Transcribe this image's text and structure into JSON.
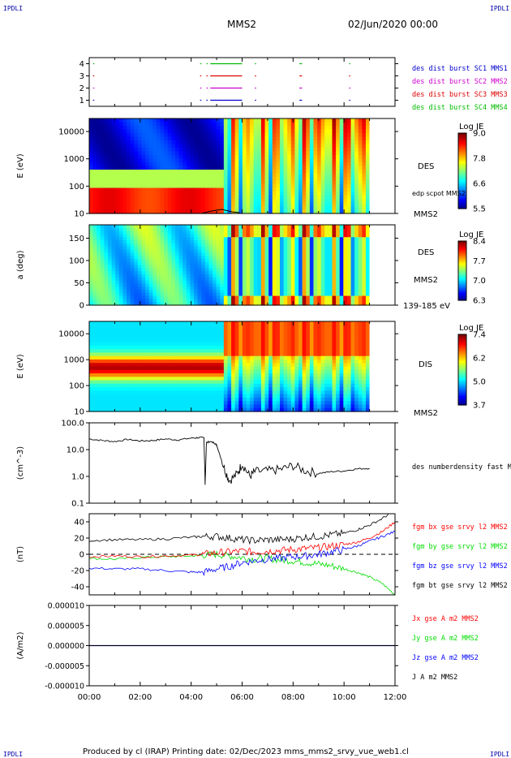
{
  "header": {
    "corner_left": "IPDLI",
    "corner_right": "IPDLI",
    "title": "MMS2",
    "date": "02/Jun/2020 00:00",
    "footer_left": "IPDLI",
    "footer_right": "IPDLI",
    "footer": "Produced by cl (IRAP)   Printing date: 02/Dec/2023   mms_mms2_srvy_vue_web1.cl"
  },
  "colors": {
    "mms1": "#0000cc",
    "mms2": "#cc00cc",
    "mms3": "#dd0000",
    "mms4": "#00bb00",
    "bx": "#ff0000",
    "by": "#00dd00",
    "bz": "#0000ff",
    "bt": "#000000"
  },
  "chart_data": [
    {
      "id": "burst",
      "type": "scatter",
      "y_ticks": [
        "1",
        "2",
        "3",
        "4"
      ],
      "ylim": [
        0.5,
        4.5
      ],
      "legend": [
        "des dist burst SC1 MMS1",
        "des dist burst SC2 MMS2",
        "des dist burst SC3 MMS3",
        "des dist burst SC4 MMS4"
      ],
      "segments_hours": [
        [
          0.15,
          0.2
        ],
        [
          4.35,
          4.4
        ],
        [
          4.6,
          4.65
        ],
        [
          4.75,
          6.0
        ],
        [
          6.5,
          6.55
        ],
        [
          8.25,
          8.35
        ],
        [
          10.2,
          10.25
        ]
      ]
    },
    {
      "id": "des_energy",
      "type": "heatmap",
      "ylabel": "E (eV)",
      "y_scale": "log",
      "y_ticks": [
        "10",
        "100",
        "1000",
        "10000"
      ],
      "ylim": [
        10,
        30000
      ],
      "right_labels": [
        "DES",
        "edp scpot MMS2",
        "MMS2"
      ],
      "colorbar": {
        "title": "Log JE",
        "ticks": [
          "9.0",
          "7.8",
          "6.6",
          "5.5"
        ],
        "range": [
          5.5,
          9.0
        ]
      }
    },
    {
      "id": "des_pitch",
      "type": "heatmap",
      "ylabel": "a (deg)",
      "y_ticks": [
        "0",
        "50",
        "100",
        "150"
      ],
      "ylim": [
        0,
        180
      ],
      "right_labels": [
        "DES",
        "MMS2",
        "139-185 eV"
      ],
      "colorbar": {
        "title": "Log JE",
        "ticks": [
          "8.4",
          "7.7",
          "7.0",
          "6.3"
        ],
        "range": [
          6.3,
          8.4
        ]
      }
    },
    {
      "id": "dis_energy",
      "type": "heatmap",
      "ylabel": "E (eV)",
      "y_scale": "log",
      "y_ticks": [
        "10",
        "100",
        "1000",
        "10000"
      ],
      "ylim": [
        10,
        30000
      ],
      "right_labels": [
        "DIS",
        "MMS2"
      ],
      "colorbar": {
        "title": "Log JE",
        "ticks": [
          "7.4",
          "6.2",
          "5.0",
          "3.7"
        ],
        "range": [
          3.7,
          7.4
        ]
      }
    },
    {
      "id": "density",
      "type": "line",
      "ylabel": "(cm^-3)",
      "y_scale": "log",
      "y_ticks": [
        "0.1",
        "1.0",
        "10.0",
        "100.0"
      ],
      "ylim": [
        0.1,
        100
      ],
      "legend": [
        "des numberdensity fast M"
      ],
      "series": [
        {
          "x_hours": [
            0,
            0.5,
            1.0,
            1.5,
            2.0,
            2.5,
            3.0,
            3.5,
            4.0,
            4.3,
            4.5,
            4.55,
            4.6,
            4.7,
            4.9,
            5.0,
            5.3,
            5.5,
            5.8,
            6.0,
            6.3,
            6.5,
            7.0,
            7.5,
            8.0,
            8.5,
            9.0,
            9.5,
            10.0,
            10.5,
            11.0
          ],
          "values": [
            25,
            22,
            20,
            24,
            21,
            22,
            25,
            23,
            27,
            28,
            28,
            0.5,
            18,
            20,
            18,
            15,
            2.0,
            0.7,
            1.2,
            3.0,
            1.0,
            1.5,
            1.6,
            1.8,
            2.5,
            1.6,
            1.3,
            1.5,
            1.6,
            1.9,
            2.0
          ]
        }
      ]
    },
    {
      "id": "bfield",
      "type": "line",
      "ylabel": "(nT)",
      "y_ticks": [
        "-40",
        "-20",
        "0",
        "20",
        "40"
      ],
      "ylim": [
        -50,
        50
      ],
      "legend": [
        "fgm bx gse srvy l2 MMS2",
        "fgm by gse srvy l2 MMS2",
        "fgm bz gse srvy l2 MMS2",
        "fgm bt gse srvy l2 MMS2"
      ],
      "x_hours": [
        0,
        1,
        2,
        3,
        4,
        4.5,
        5,
        5.5,
        6,
        6.5,
        7,
        7.5,
        8,
        8.5,
        9,
        9.5,
        10,
        10.5,
        11,
        11.5,
        12
      ],
      "series": [
        {
          "values": [
            -3,
            -2,
            -3,
            -2,
            -1,
            0,
            2,
            3,
            4,
            3,
            4,
            5,
            6,
            7,
            8,
            10,
            12,
            15,
            20,
            28,
            40
          ]
        },
        {
          "values": [
            -5,
            -6,
            -4,
            -3,
            -2,
            -1,
            0,
            -2,
            -4,
            -6,
            -5,
            -7,
            -8,
            -10,
            -12,
            -14,
            -18,
            -22,
            -28,
            -36,
            -50
          ]
        },
        {
          "values": [
            -17,
            -18,
            -18,
            -20,
            -22,
            -22,
            -18,
            -15,
            -10,
            -8,
            -6,
            -5,
            -3,
            -2,
            0,
            3,
            6,
            10,
            16,
            22,
            28
          ]
        },
        {
          "values": [
            17,
            18,
            18,
            19,
            21,
            22,
            22,
            20,
            18,
            17,
            18,
            18,
            19,
            21,
            22,
            24,
            26,
            30,
            36,
            44,
            55
          ]
        }
      ]
    },
    {
      "id": "current",
      "type": "line",
      "ylabel": "(A/m2)",
      "y_ticks": [
        "-0.000010",
        "-0.000005",
        "0.000000",
        "0.000005",
        "0.000010"
      ],
      "ylim": [
        -1e-05,
        1e-05
      ],
      "legend": [
        "Jx gse A m2 MMS2",
        "Jy gse A m2 MMS2",
        "Jz gse A m2 MMS2",
        "J A m2 MMS2"
      ]
    }
  ],
  "x_axis": {
    "range_hours": [
      0,
      12
    ],
    "tick_labels": [
      "00:00",
      "02:00",
      "04:00",
      "06:00",
      "08:00",
      "10:00",
      "12:00"
    ]
  }
}
